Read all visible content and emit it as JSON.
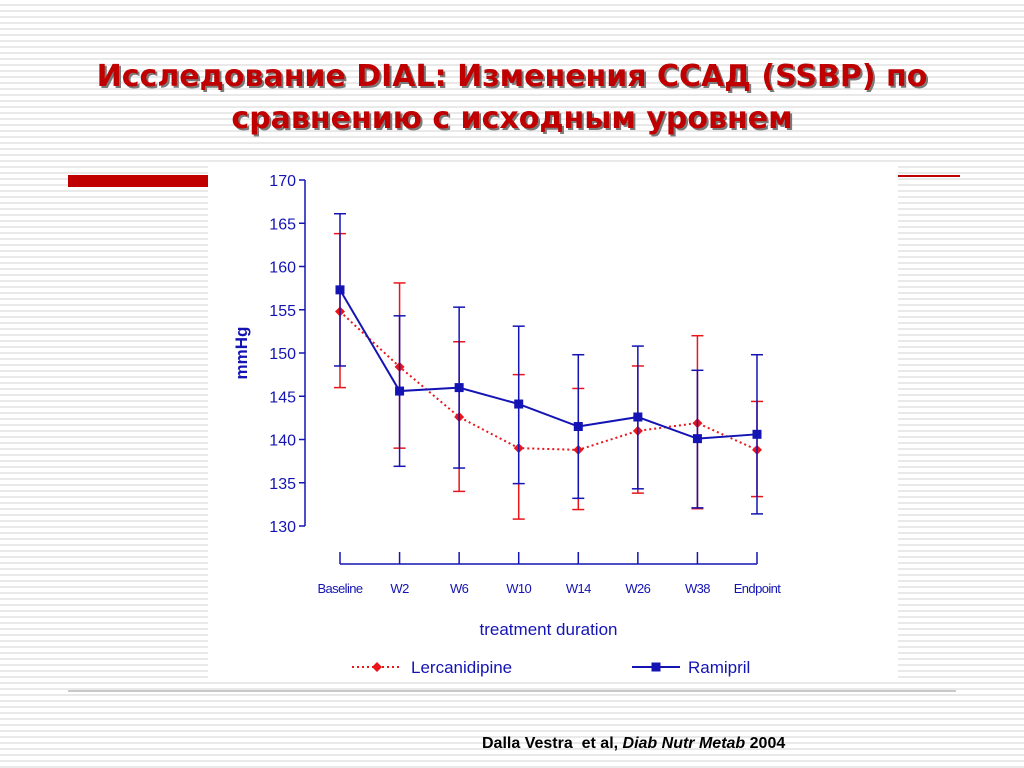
{
  "slide": {
    "title_line1": "Исследование DIAL: Изменения ССАД (SSBP) по",
    "title_line2": "сравнению с исходным уровнем",
    "citation_authors": "Dalla Vestra  et al, ",
    "citation_journal": "Diab Nutr Metab",
    "citation_year": " 2004"
  },
  "colors": {
    "title": "#c00000",
    "lercanidipine": "#e8161b",
    "ramipril": "#1414b4",
    "axis": "#1414b4"
  },
  "chart_data": {
    "type": "line",
    "xlabel": "treatment duration",
    "ylabel": "mmHg",
    "categories": [
      "Baseline",
      "W2",
      "W6",
      "W10",
      "W14",
      "W26",
      "W38",
      "Endpoint"
    ],
    "ylim": [
      130,
      170
    ],
    "yticks": [
      130,
      135,
      140,
      145,
      150,
      155,
      160,
      165,
      170
    ],
    "legend_position": "bottom",
    "series": [
      {
        "name": "Lercanidipine",
        "line_style": "dotted",
        "marker": "diamond",
        "values": [
          154.8,
          148.4,
          142.6,
          139.0,
          138.8,
          141.0,
          141.9,
          138.8
        ],
        "error_low": [
          146.0,
          139.0,
          134.0,
          130.8,
          131.9,
          133.8,
          132.0,
          133.4
        ],
        "error_high": [
          163.8,
          158.1,
          151.3,
          147.5,
          145.9,
          148.5,
          152.0,
          144.4
        ]
      },
      {
        "name": "Ramipril",
        "line_style": "solid",
        "marker": "square",
        "values": [
          157.3,
          145.6,
          146.0,
          144.1,
          141.5,
          142.6,
          140.1,
          140.6
        ],
        "error_low": [
          148.5,
          136.9,
          136.7,
          134.9,
          133.2,
          134.3,
          132.1,
          131.4
        ],
        "error_high": [
          166.1,
          154.3,
          155.3,
          153.1,
          149.8,
          150.8,
          148.0,
          149.8
        ]
      }
    ]
  }
}
